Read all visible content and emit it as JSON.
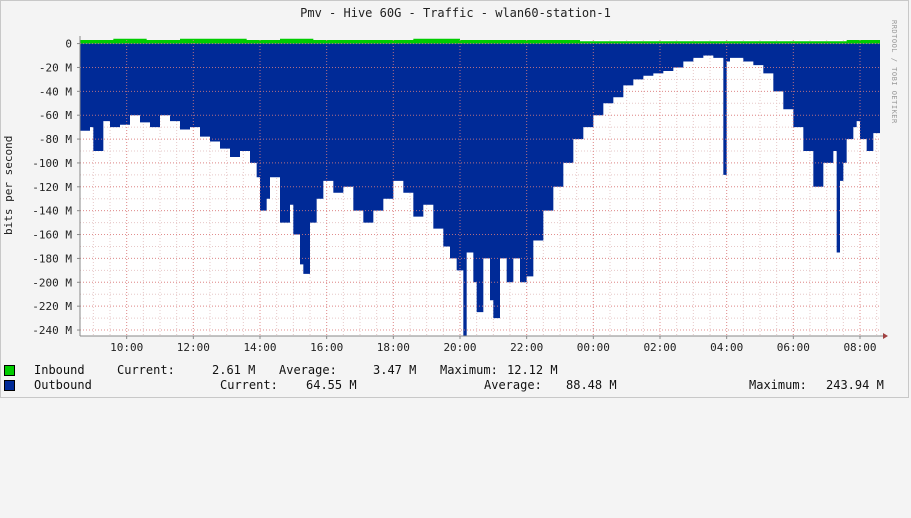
{
  "chart_data": {
    "type": "area",
    "title": "Pmv - Hive 60G - Traffic - wlan60-station-1",
    "ylabel": "bits per second",
    "watermark": "RRDTOOL / TOBI OETIKER",
    "x_ticks": [
      "10:00",
      "12:00",
      "14:00",
      "16:00",
      "18:00",
      "20:00",
      "22:00",
      "00:00",
      "02:00",
      "04:00",
      "06:00",
      "08:00"
    ],
    "y_ticks": [
      "0",
      "-20 M",
      "-40 M",
      "-60 M",
      "-80 M",
      "-100 M",
      "-120 M",
      "-140 M",
      "-160 M",
      "-180 M",
      "-200 M",
      "-220 M",
      "-240 M"
    ],
    "y_tick_values": [
      0,
      -20,
      -40,
      -60,
      -80,
      -100,
      -120,
      -140,
      -160,
      -180,
      -200,
      -220,
      -240
    ],
    "ylim": [
      -245,
      3
    ],
    "xlim_hours": [
      8.6,
      32.6
    ],
    "grid": true,
    "units": "Mbit/s",
    "series": [
      {
        "name": "Inbound",
        "color": "#00cc00",
        "x_hours": [
          8.6,
          9.6,
          10.6,
          11.6,
          12.6,
          13.6,
          14.6,
          15.6,
          16.6,
          17.6,
          18.6,
          19.6,
          20.0,
          20.6,
          21.6,
          22.6,
          23.6,
          24.6,
          25.6,
          26.6,
          27.6,
          28.6,
          29.6,
          30.6,
          31.6,
          32.6
        ],
        "values": [
          3,
          4,
          3,
          4,
          4,
          3,
          4,
          3,
          3,
          3,
          4,
          4,
          3,
          3,
          3,
          3,
          2,
          2,
          2,
          2,
          2,
          2,
          2,
          2,
          3,
          2
        ]
      },
      {
        "name": "Outbound",
        "color": "#002a97",
        "x_hours": [
          8.6,
          8.9,
          9.0,
          9.3,
          9.5,
          9.8,
          10.1,
          10.4,
          10.7,
          11.0,
          11.3,
          11.6,
          11.9,
          12.2,
          12.5,
          12.8,
          13.1,
          13.4,
          13.7,
          13.9,
          14.0,
          14.2,
          14.3,
          14.6,
          14.9,
          15.0,
          15.2,
          15.3,
          15.5,
          15.7,
          15.9,
          16.2,
          16.5,
          16.8,
          17.1,
          17.4,
          17.7,
          18.0,
          18.3,
          18.6,
          18.9,
          19.2,
          19.5,
          19.7,
          19.9,
          20.1,
          20.2,
          20.4,
          20.5,
          20.7,
          20.9,
          21.0,
          21.2,
          21.4,
          21.6,
          21.8,
          22.0,
          22.2,
          22.5,
          22.8,
          23.1,
          23.4,
          23.7,
          24.0,
          24.3,
          24.6,
          24.9,
          25.2,
          25.5,
          25.8,
          26.1,
          26.4,
          26.7,
          27.0,
          27.3,
          27.6,
          27.9,
          28.0,
          28.1,
          28.2,
          28.5,
          28.8,
          29.1,
          29.4,
          29.7,
          30.0,
          30.3,
          30.6,
          30.9,
          31.2,
          31.3,
          31.4,
          31.5,
          31.6,
          31.8,
          31.9,
          32.0,
          32.2,
          32.4,
          32.6
        ],
        "values": [
          -73,
          -70,
          -90,
          -65,
          -70,
          -68,
          -60,
          -66,
          -70,
          -60,
          -65,
          -72,
          -70,
          -78,
          -82,
          -88,
          -95,
          -90,
          -100,
          -112,
          -140,
          -130,
          -112,
          -150,
          -135,
          -160,
          -185,
          -193,
          -150,
          -130,
          -115,
          -125,
          -120,
          -140,
          -150,
          -140,
          -130,
          -115,
          -125,
          -145,
          -135,
          -155,
          -170,
          -180,
          -190,
          -245,
          -175,
          -200,
          -225,
          -180,
          -215,
          -230,
          -180,
          -200,
          -180,
          -200,
          -195,
          -165,
          -140,
          -120,
          -100,
          -80,
          -70,
          -60,
          -50,
          -45,
          -35,
          -30,
          -27,
          -25,
          -23,
          -20,
          -15,
          -12,
          -10,
          -12,
          -110,
          -15,
          -12,
          -12,
          -15,
          -18,
          -25,
          -40,
          -55,
          -70,
          -90,
          -120,
          -100,
          -90,
          -175,
          -115,
          -100,
          -80,
          -70,
          -65,
          -80,
          -90,
          -75,
          -60
        ]
      }
    ],
    "legend": {
      "inbound": {
        "name": "Inbound",
        "current_label": "Current:",
        "current": "2.61 M",
        "average_label": "Average:",
        "average": "3.47 M",
        "maximum_label": "Maximum:",
        "maximum": "12.12 M"
      },
      "outbound": {
        "name": "Outbound",
        "current_label": "Current:",
        "current": "64.55 M",
        "average_label": "Average:",
        "average": "88.48 M",
        "maximum_label": "Maximum:",
        "maximum": "243.94 M"
      }
    }
  }
}
